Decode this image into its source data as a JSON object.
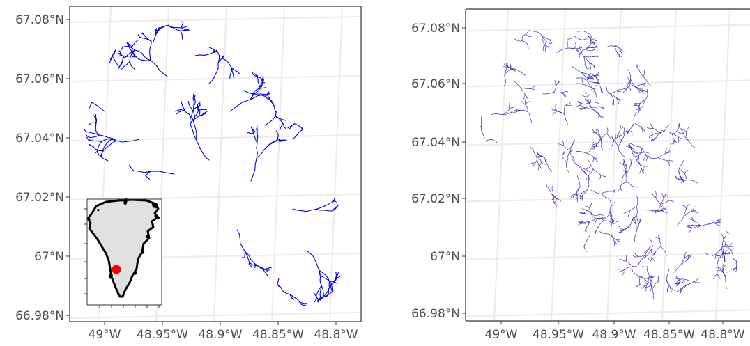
{
  "panels": [
    {
      "id": "left",
      "lat_ticks": [
        "67.08°N",
        "67.06°N",
        "67.04°N",
        "67.02°N",
        "67°N",
        "66.98°N"
      ],
      "lon_ticks": [
        "49°W",
        "48.95°W",
        "48.9°W",
        "48.85°W",
        "48.8°W"
      ],
      "network_density": "sparse",
      "network_color": "#0000ee",
      "inset": {
        "content": "Greenland overview map",
        "land_color": "#e0e0e0",
        "coast_color": "#000000",
        "marker_color": "#ff0000"
      }
    },
    {
      "id": "right",
      "lat_ticks": [
        "67.08°N",
        "67.06°N",
        "67.04°N",
        "67.02°N",
        "67°N",
        "66.98°N"
      ],
      "lon_ticks": [
        "49°W",
        "48.95°W",
        "48.9°W",
        "48.85°W",
        "48.8°W"
      ],
      "network_density": "dense",
      "network_color": "#3333bb"
    }
  ],
  "colors": {
    "grid": "#ebebeb",
    "panel_border": "#333333",
    "tick_text": "#4d4d4d"
  }
}
